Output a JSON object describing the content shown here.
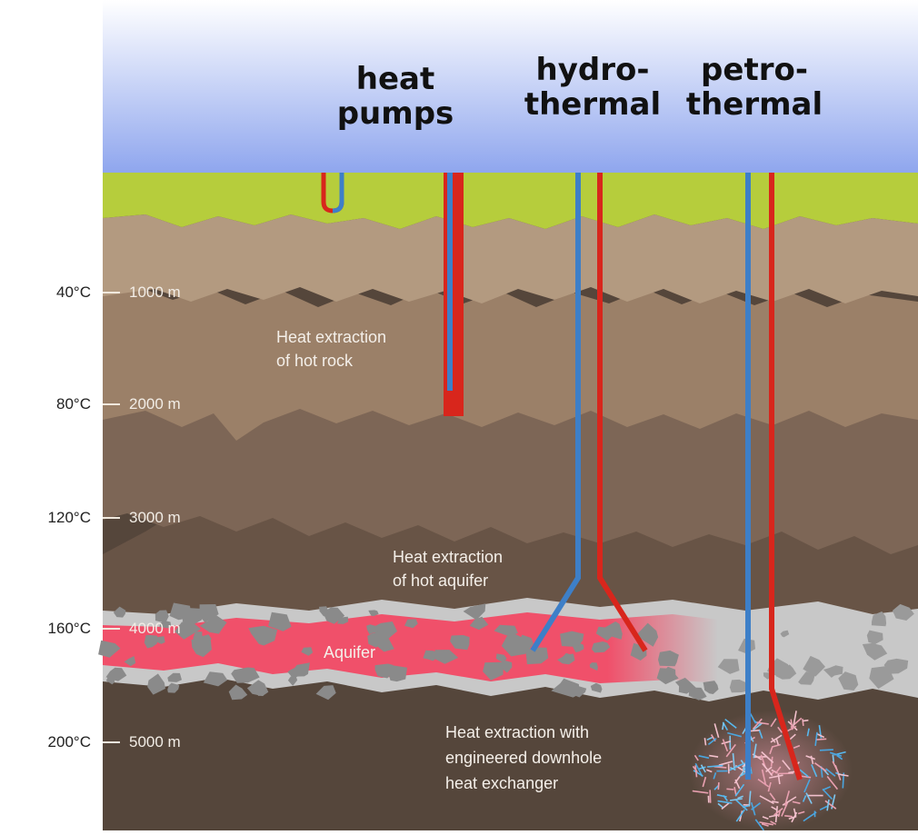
{
  "header": {
    "heat_pumps": "heat pumps",
    "hydrothermal": "hydro-\nthermal",
    "petrothermal": "petro-\nthermal"
  },
  "scale": [
    {
      "temperature": "40°C",
      "depth": "1000 m"
    },
    {
      "temperature": "80°C",
      "depth": "2000 m"
    },
    {
      "temperature": "120°C",
      "depth": "3000 m"
    },
    {
      "temperature": "160°C",
      "depth": "4000 m"
    },
    {
      "temperature": "200°C",
      "depth": "5000 m"
    }
  ],
  "annotations": {
    "hot_rock": "Heat extraction\nof hot rock",
    "hot_aquifer": "Heat extraction\nof hot aquifer",
    "aquifer": "Aquifer",
    "engineered": "Heat extraction with\nengineered downhole\nheat exchanger"
  },
  "colors": {
    "sky_top": "#ffffff",
    "sky_bottom": "#8fa6ee",
    "grass": "#b6cd3c",
    "layer_1": "#b39a80",
    "layer_2": "#9b8068",
    "layer_3": "#7d6656",
    "layer_4": "#685446",
    "layer_5": "#55463b",
    "aquifer_band": "#c8c8c8",
    "aquifer_core": "#f0506a",
    "cold_pipe": "#3d7fc8",
    "hot_pipe": "#d8261c"
  }
}
